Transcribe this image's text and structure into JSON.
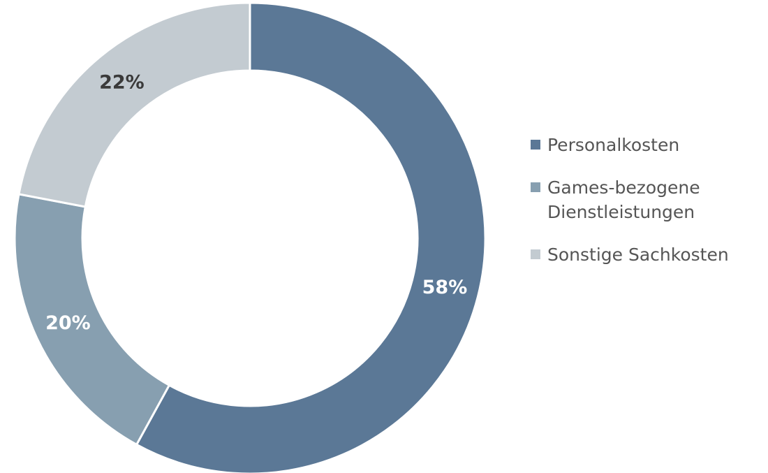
{
  "chart_data": {
    "type": "donut",
    "categories": [
      "Personalkosten",
      "Games-bezogene Dienstleistungen",
      "Sonstige Sachkosten"
    ],
    "values": [
      58,
      20,
      22
    ],
    "value_labels": [
      "58%",
      "20%",
      "22%"
    ],
    "colors": [
      "#5b7896",
      "#879fb0",
      "#c3cbd1"
    ],
    "value_label_colors": [
      "#ffffff",
      "#ffffff",
      "#3a3a3a"
    ],
    "legend": "right"
  }
}
